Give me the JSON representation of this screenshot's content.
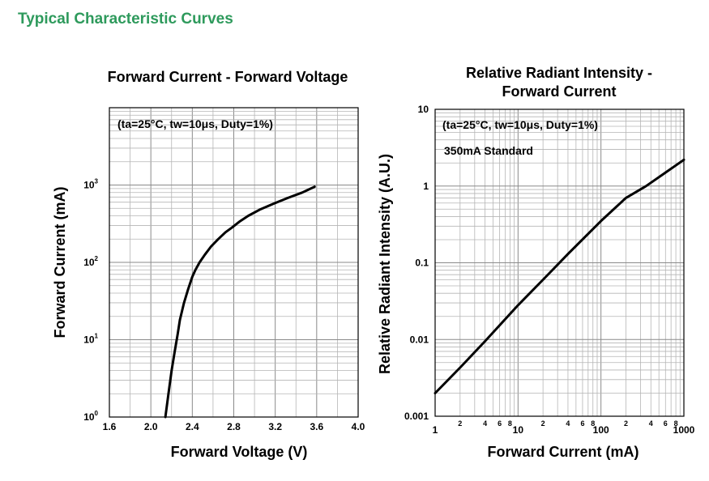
{
  "heading": "Typical Characteristic Curves",
  "chart_data": [
    {
      "type": "line",
      "title": "Forward Current - Forward Voltage",
      "annotation": "(ta=25°C, tw=10μs, Duty=1%)",
      "xlabel": "Forward Voltage (V)",
      "ylabel": "Forward Current (mA)",
      "xlim": [
        1.6,
        4.0
      ],
      "ylim": [
        1,
        10000
      ],
      "yscale": "log",
      "grid": true,
      "xticks": [
        "1.6",
        "2.0",
        "2.4",
        "2.8",
        "3.2",
        "3.6",
        "4.0"
      ],
      "yticks": [
        {
          "base": "10",
          "exp": "0"
        },
        {
          "base": "10",
          "exp": "1"
        },
        {
          "base": "10",
          "exp": "2"
        },
        {
          "base": "10",
          "exp": "3"
        }
      ],
      "series": [
        {
          "x": [
            2.14,
            2.17,
            2.2,
            2.23,
            2.26,
            2.28,
            2.32,
            2.36,
            2.4,
            2.43,
            2.47,
            2.52,
            2.58,
            2.65,
            2.72,
            2.78,
            2.86,
            2.94,
            3.05,
            3.18,
            3.32,
            3.46,
            3.58
          ],
          "y": [
            1,
            2,
            4,
            7,
            12,
            18,
            30,
            45,
            65,
            80,
            100,
            125,
            160,
            200,
            245,
            280,
            340,
            400,
            480,
            570,
            680,
            800,
            950
          ]
        }
      ]
    },
    {
      "type": "line",
      "title": "Relative Radiant Intensity - Forward Current",
      "title_lines": [
        "Relative Radiant Intensity -",
        "Forward Current"
      ],
      "annotation": "(ta=25°C, tw=10μs, Duty=1%)",
      "annotation2": "350mA Standard",
      "xlabel": "Forward Current (mA)",
      "ylabel": "Relative Radiant Intensity (A.U.)",
      "xscale": "log",
      "yscale": "log",
      "xlim": [
        1,
        1000
      ],
      "ylim": [
        0.001,
        10
      ],
      "grid": true,
      "xticks": [
        "1",
        "10",
        "100",
        "1000"
      ],
      "xminor_labels": [
        "2",
        "4",
        "6",
        "8"
      ],
      "yticks": [
        "0.001",
        "0.01",
        "0.1",
        "1",
        "10"
      ],
      "series": [
        {
          "x": [
            1,
            2,
            4,
            10,
            20,
            40,
            100,
            200,
            350,
            600,
            1000
          ],
          "y": [
            0.002,
            0.0043,
            0.0095,
            0.028,
            0.06,
            0.13,
            0.35,
            0.7,
            1.0,
            1.5,
            2.2
          ]
        }
      ]
    }
  ]
}
